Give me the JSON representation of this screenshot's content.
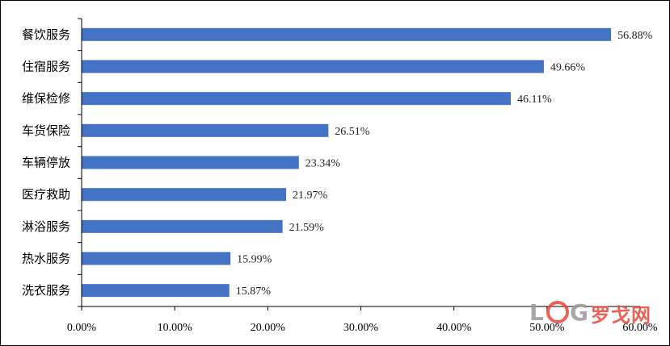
{
  "chart_data": {
    "type": "bar",
    "orientation": "horizontal",
    "categories": [
      "餐饮服务",
      "住宿服务",
      "维保检修",
      "车货保险",
      "车辆停放",
      "医疗救助",
      "淋浴服务",
      "热水服务",
      "洗衣服务"
    ],
    "values": [
      56.88,
      49.66,
      46.11,
      26.51,
      23.34,
      21.97,
      21.59,
      15.99,
      15.87
    ],
    "value_labels": [
      "56.88%",
      "49.66%",
      "46.11%",
      "26.51%",
      "23.34%",
      "21.97%",
      "21.59%",
      "15.99%",
      "15.87%"
    ],
    "x_ticks": [
      "0.00%",
      "10.00%",
      "20.00%",
      "30.00%",
      "40.00%",
      "50.00%",
      "60.00%"
    ],
    "xlim": [
      0,
      60
    ],
    "bar_color": "#4472c4",
    "grid": false,
    "legend": "none"
  },
  "watermark": {
    "text": "罗戈网",
    "logo_letters": "LOG"
  }
}
